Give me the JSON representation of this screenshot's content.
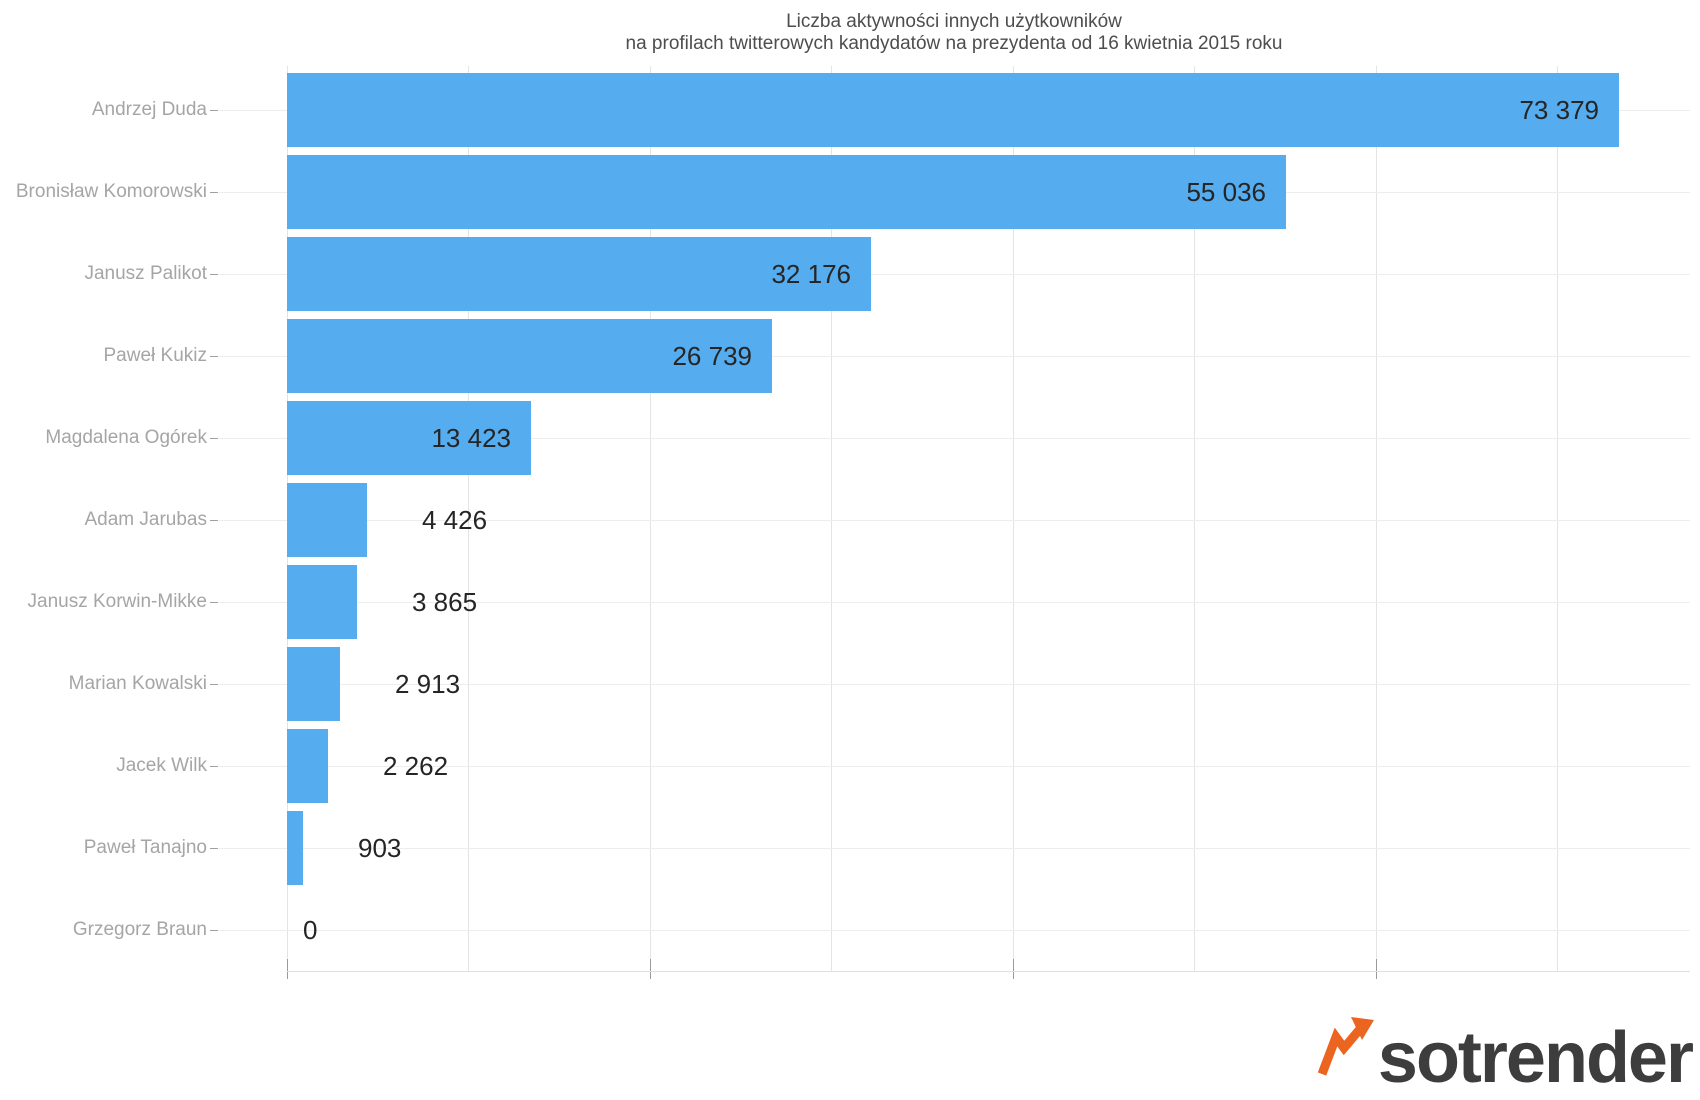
{
  "title": {
    "line1": "Liczba aktywności innych użytkowników",
    "line2": "na profilach twitterowych kandydatów na prezydenta od 16 kwietnia 2015 roku"
  },
  "chart_data": {
    "type": "bar",
    "orientation": "horizontal",
    "title": "Liczba aktywności innych użytkowników na profilach twitterowych kandydatów na prezydenta od 16 kwietnia 2015 roku",
    "categories": [
      "Andrzej Duda",
      "Bronisław Komorowski",
      "Janusz Palikot",
      "Paweł Kukiz",
      "Magdalena Ogórek",
      "Adam Jarubas",
      "Janusz Korwin-Mikke",
      "Marian Kowalski",
      "Jacek Wilk",
      "Paweł Tanajno",
      "Grzegorz Braun"
    ],
    "values": [
      73379,
      55036,
      32176,
      26739,
      13423,
      4426,
      3865,
      2913,
      2262,
      903,
      0
    ],
    "value_labels": [
      "73 379",
      "55 036",
      "32 176",
      "26 739",
      "13 423",
      "4 426",
      "3 865",
      "2 913",
      "2 262",
      "903",
      "0"
    ],
    "xlabel": "",
    "ylabel": "",
    "xlim": [
      0,
      77700
    ],
    "x_major_tick_interval": 20000,
    "x_minor_gridline_interval": 10000,
    "x_tick_labels_visible": false,
    "grid": true,
    "legend": "none",
    "bar_color": "#55acee",
    "value_label_color": "#252525",
    "category_label_color": "#a5a5a5",
    "gridline_color": "#e4e4e4"
  },
  "branding": {
    "logo_text": "sotrender",
    "logo_text_color": "#3d3d3d",
    "logo_arrow_color": "#eb6420",
    "logo_arrow_icon": "trending-up-arrow"
  }
}
